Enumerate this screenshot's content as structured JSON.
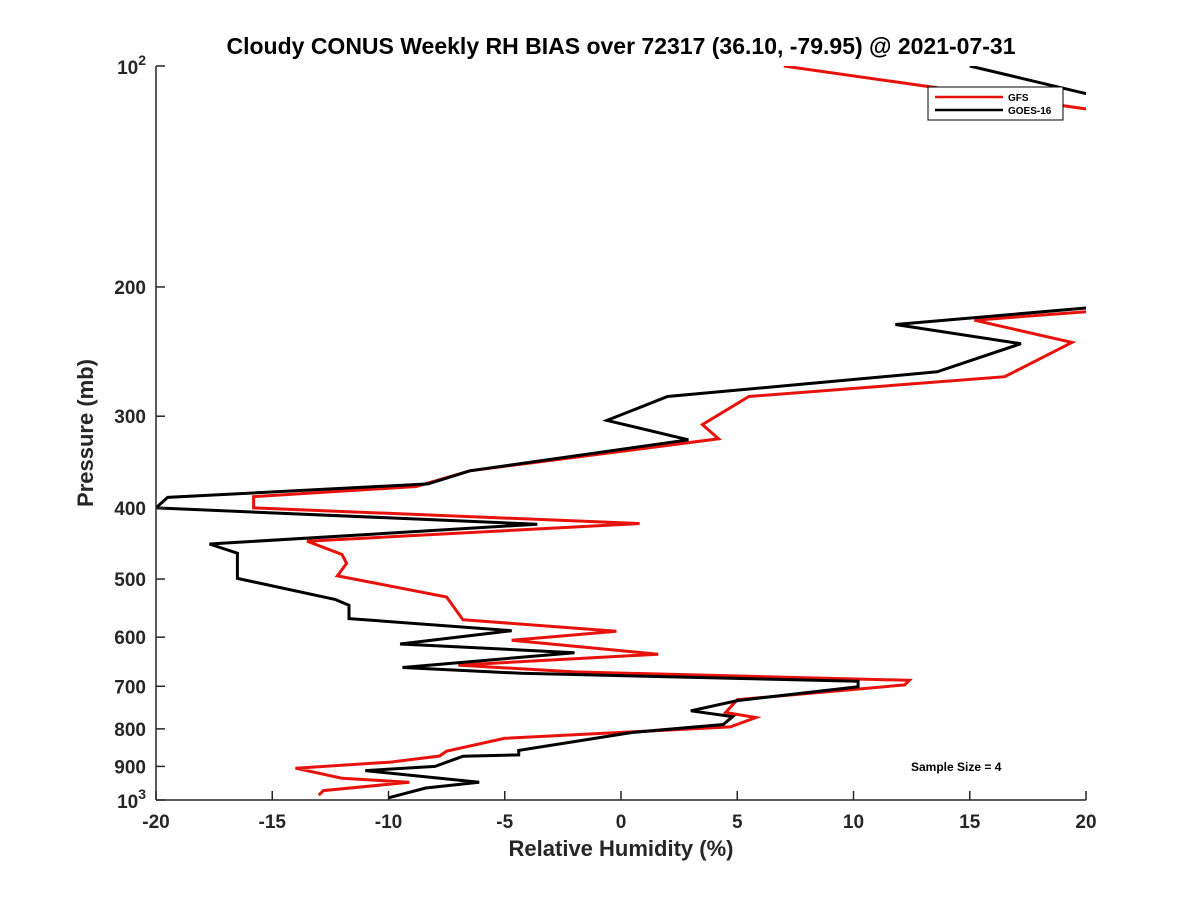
{
  "chart_data": {
    "type": "line",
    "title": "Cloudy CONUS Weekly RH BIAS over 72317 (36.10, -79.95) @ 2021-07-31",
    "xlabel": "Relative Humidity (%)",
    "ylabel": "Pressure (mb)",
    "xlim": [
      -20,
      20
    ],
    "ylim": [
      100,
      1000
    ],
    "y_scale": "log",
    "y_reversed": true,
    "x_ticks": [
      "-20",
      "-15",
      "-10",
      "-5",
      "0",
      "5",
      "10",
      "15",
      "20"
    ],
    "y_ticks": [
      {
        "value": 100,
        "base": "10",
        "exp": "2"
      },
      {
        "value": 200,
        "label": "200"
      },
      {
        "value": 300,
        "label": "300"
      },
      {
        "value": 400,
        "label": "400"
      },
      {
        "value": 500,
        "label": "500"
      },
      {
        "value": 600,
        "label": "600"
      },
      {
        "value": 700,
        "label": "700"
      },
      {
        "value": 800,
        "label": "800"
      },
      {
        "value": 900,
        "label": "900"
      },
      {
        "value": 1000,
        "base": "10",
        "exp": "3"
      }
    ],
    "grid": false,
    "legend_position": "top-right",
    "annotation": "Sample Size = 4",
    "series": [
      {
        "name": "GFS",
        "color": "#e8120c",
        "points": [
          [
            7.0,
            100
          ],
          [
            20.5,
            115
          ],
          [
            21.0,
            215
          ],
          [
            15.2,
            222
          ],
          [
            19.4,
            238
          ],
          [
            16.5,
            265
          ],
          [
            5.5,
            282
          ],
          [
            3.5,
            308
          ],
          [
            4.2,
            322
          ],
          [
            -6.5,
            356
          ],
          [
            -8.8,
            374
          ],
          [
            -15.8,
            386
          ],
          [
            -15.8,
            400
          ],
          [
            0.8,
            420
          ],
          [
            -13.5,
            444
          ],
          [
            -12.0,
            463
          ],
          [
            -11.8,
            476
          ],
          [
            -12.2,
            495
          ],
          [
            -7.5,
            529
          ],
          [
            -6.8,
            568
          ],
          [
            -0.2,
            589
          ],
          [
            -4.7,
            606
          ],
          [
            1.6,
            633
          ],
          [
            -7.0,
            655
          ],
          [
            -2.0,
            669
          ],
          [
            12.4,
            687
          ],
          [
            12.2,
            697
          ],
          [
            5.0,
            730
          ],
          [
            4.5,
            760
          ],
          [
            5.8,
            772
          ],
          [
            4.7,
            795
          ],
          [
            -5.0,
            824
          ],
          [
            -7.5,
            858
          ],
          [
            -7.8,
            871
          ],
          [
            -9.9,
            888
          ],
          [
            -14.0,
            905
          ],
          [
            -12.0,
            934
          ],
          [
            -9.1,
            946
          ],
          [
            -12.8,
            971
          ],
          [
            -13.0,
            985
          ]
        ]
      },
      {
        "name": "GOES-16",
        "color": "#000000",
        "points": [
          [
            15.0,
            100
          ],
          [
            20.5,
            110
          ],
          [
            20.5,
            213
          ],
          [
            11.8,
            225
          ],
          [
            17.2,
            239
          ],
          [
            13.6,
            261
          ],
          [
            2.0,
            282
          ],
          [
            -0.6,
            304
          ],
          [
            2.9,
            323
          ],
          [
            -6.5,
            356
          ],
          [
            -8.3,
            371
          ],
          [
            -19.5,
            387
          ],
          [
            -20.0,
            400
          ],
          [
            -3.6,
            421
          ],
          [
            -17.7,
            448
          ],
          [
            -16.5,
            461
          ],
          [
            -16.5,
            499
          ],
          [
            -12.3,
            533
          ],
          [
            -11.7,
            543
          ],
          [
            -11.7,
            566
          ],
          [
            -4.7,
            588
          ],
          [
            -9.5,
            613
          ],
          [
            -2.0,
            630
          ],
          [
            -9.4,
            660
          ],
          [
            -4.3,
            672
          ],
          [
            10.2,
            689
          ],
          [
            10.2,
            701
          ],
          [
            5.0,
            732
          ],
          [
            3.0,
            756
          ],
          [
            4.8,
            770
          ],
          [
            4.4,
            789
          ],
          [
            0.5,
            809
          ],
          [
            -4.4,
            856
          ],
          [
            -4.4,
            868
          ],
          [
            -6.8,
            872
          ],
          [
            -8.0,
            900
          ],
          [
            -11.0,
            912
          ],
          [
            -6.1,
            946
          ],
          [
            -8.4,
            963
          ],
          [
            -10.0,
            993
          ]
        ]
      }
    ]
  }
}
